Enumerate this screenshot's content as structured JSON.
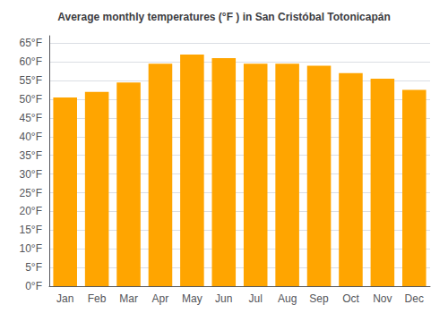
{
  "chart_data": {
    "type": "bar",
    "title": "Average monthly temperatures (°F ) in San Cristóbal Totonicapán",
    "categories": [
      "Jan",
      "Feb",
      "Mar",
      "Apr",
      "May",
      "Jun",
      "Jul",
      "Aug",
      "Sep",
      "Oct",
      "Nov",
      "Dec"
    ],
    "values": [
      50.5,
      52,
      54.5,
      59.5,
      62,
      61,
      59.5,
      59.5,
      59,
      57,
      55.5,
      52.5
    ],
    "color": "#FFA500",
    "ylim": [
      0,
      67
    ],
    "yticks": [
      {
        "value": 0,
        "label": "0°F"
      },
      {
        "value": 5,
        "label": "5°F"
      },
      {
        "value": 10,
        "label": "10°F"
      },
      {
        "value": 15,
        "label": "15°F"
      },
      {
        "value": 20,
        "label": "20°F"
      },
      {
        "value": 25,
        "label": "25°F"
      },
      {
        "value": 30,
        "label": "30°F"
      },
      {
        "value": 35,
        "label": "35°F"
      },
      {
        "value": 40,
        "label": "40°F"
      },
      {
        "value": 45,
        "label": "45°F"
      },
      {
        "value": 50,
        "label": "50°F"
      },
      {
        "value": 55,
        "label": "55°F"
      },
      {
        "value": 60,
        "label": "60°F"
      },
      {
        "value": 65,
        "label": "65°F"
      }
    ],
    "grid": true
  }
}
